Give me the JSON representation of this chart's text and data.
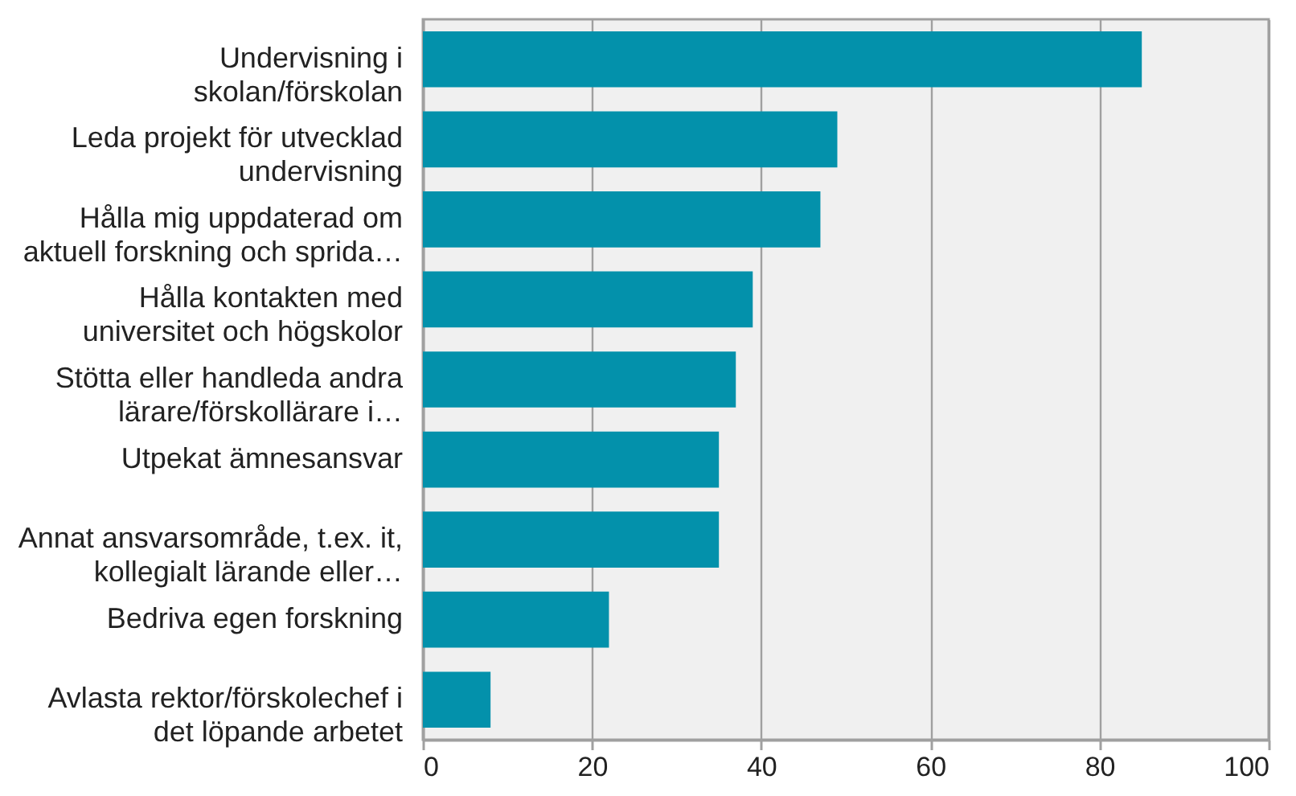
{
  "chart_data": {
    "type": "bar",
    "orientation": "horizontal",
    "categories": [
      "Undervisning i\nskolan/förskolan",
      "Leda projekt för utvecklad\nundervisning",
      "Hålla mig uppdaterad om\naktuell forskning och sprida…",
      "Hålla kontakten med\nuniversitet och högskolor",
      "Stötta eller handleda andra\nlärare/förskollärare i…",
      "Utpekat ämnesansvar",
      "Annat ansvarsområde, t.ex. it,\nkollegialt lärande eller…",
      "Bedriva egen forskning",
      "Avlasta rektor/förskolechef i\ndet löpande arbetet"
    ],
    "values": [
      85,
      49,
      47,
      39,
      37,
      35,
      35,
      22,
      8
    ],
    "color": "#0391ab",
    "xlim": [
      0,
      100
    ],
    "xticks": [
      0,
      20,
      40,
      60,
      80,
      100
    ],
    "grid": "x"
  }
}
